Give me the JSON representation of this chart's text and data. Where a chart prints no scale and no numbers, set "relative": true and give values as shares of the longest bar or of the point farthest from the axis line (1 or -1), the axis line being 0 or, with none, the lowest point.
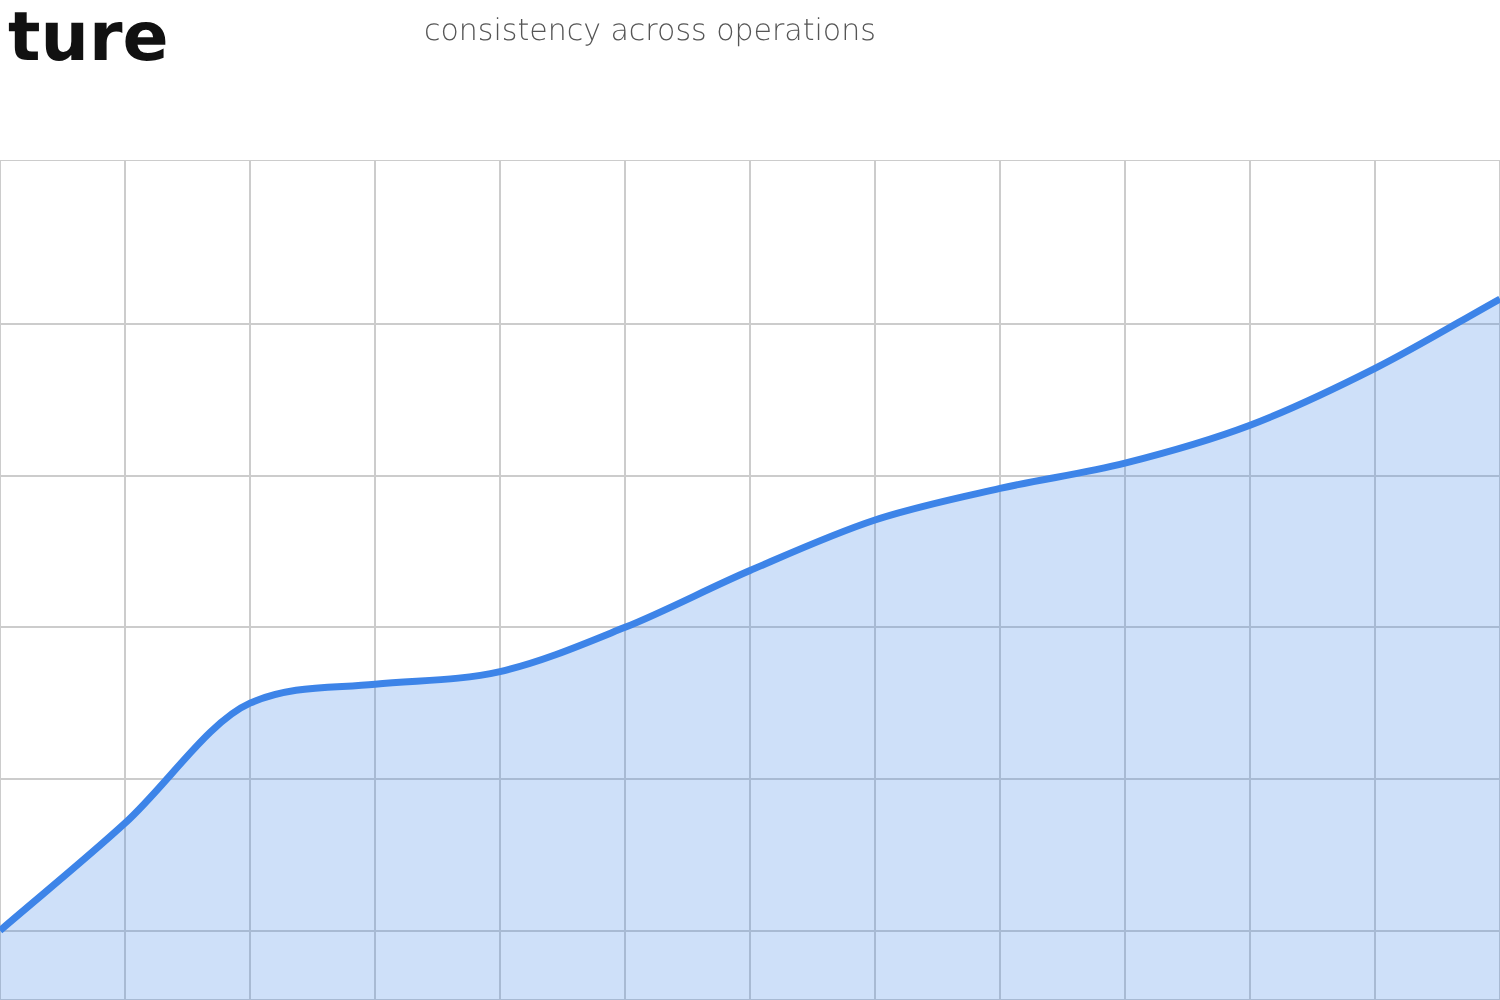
{
  "chart_data": {
    "type": "area",
    "title": "ture",
    "subtitle": "consistency across operations",
    "relative": true,
    "categories": [
      null,
      null,
      null,
      null,
      null,
      null,
      null,
      null,
      null,
      null,
      null,
      null,
      null
    ],
    "series": [
      {
        "color": "#3d84e8",
        "values": [
          0,
          0.17,
          0.36,
          0.39,
          0.41,
          0.48,
          0.57,
          0.65,
          0.7,
          0.74,
          0.8,
          0.89,
          1
        ]
      }
    ],
    "grid": true,
    "legend": false
  }
}
